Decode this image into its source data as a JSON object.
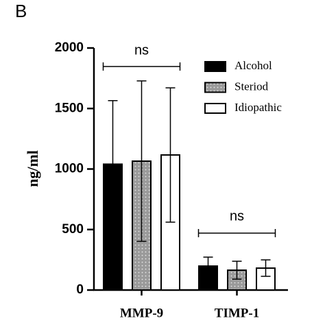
{
  "panel_label": "B",
  "chart_data": {
    "type": "bar",
    "y_label": "ng/ml",
    "categories": [
      "MMP-9",
      "TIMP-1"
    ],
    "series": [
      {
        "name": "Alcohol",
        "color": "#000000",
        "values": [
          1040,
          198
        ],
        "errors": [
          525,
          74
        ]
      },
      {
        "name": "Steriod",
        "color": "#9a9a9a",
        "values": [
          1065,
          164
        ],
        "errors": [
          663,
          74
        ]
      },
      {
        "name": "Idiopathic",
        "color": "#ffffff",
        "values": [
          1116,
          181
        ],
        "errors": [
          555,
          68
        ]
      }
    ],
    "ylim": [
      0,
      2000
    ],
    "yticks": [
      0,
      500,
      1000,
      1500,
      2000
    ],
    "annotations": [
      "ns",
      "ns"
    ],
    "legend": "upper right"
  }
}
